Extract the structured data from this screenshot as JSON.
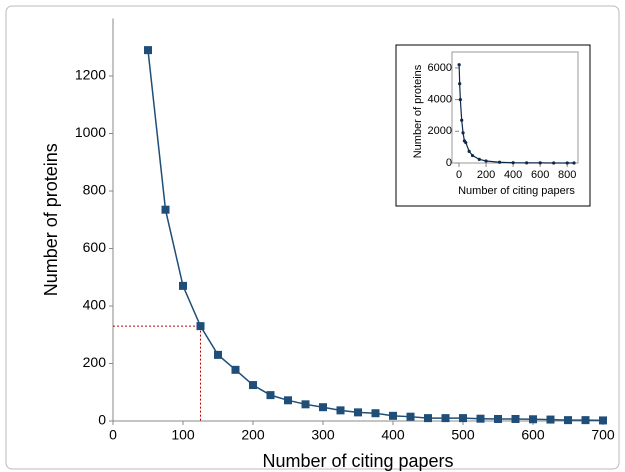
{
  "chart_data": [
    {
      "type": "line",
      "x_label": "Number of citing papers",
      "y_label": "Number of proteins",
      "x": [
        50,
        75,
        100,
        125,
        150,
        175,
        200,
        225,
        250,
        275,
        300,
        325,
        350,
        375,
        400,
        425,
        450,
        475,
        500,
        525,
        550,
        575,
        600,
        625,
        650,
        675,
        700
      ],
      "series": [
        {
          "color": "#1f4e79",
          "values": [
            1290,
            735,
            470,
            330,
            230,
            178,
            125,
            90,
            72,
            58,
            48,
            37,
            30,
            27,
            18,
            15,
            10,
            10,
            10,
            8,
            7,
            7,
            6,
            5,
            3,
            3,
            2
          ]
        }
      ],
      "xlim": [
        0,
        700
      ],
      "ylim": [
        0,
        1400
      ],
      "xticks": [
        0,
        100,
        200,
        300,
        400,
        500,
        600,
        700
      ],
      "yticks": [
        0,
        200,
        400,
        600,
        800,
        1000,
        1200
      ],
      "reference_point": {
        "x": 125,
        "y": 330,
        "color": "#c00000"
      }
    },
    {
      "type": "line",
      "x_label": "Number of citing papers",
      "y_label": "Number of proteins",
      "x": [
        1,
        5,
        10,
        20,
        30,
        40,
        50,
        75,
        100,
        150,
        200,
        300,
        400,
        500,
        600,
        700,
        800,
        850
      ],
      "series": [
        {
          "color": "#0d2a4a",
          "values": [
            6200,
            5000,
            4000,
            2700,
            1900,
            1400,
            1290,
            735,
            470,
            230,
            125,
            48,
            18,
            10,
            6,
            2,
            1,
            0
          ]
        }
      ],
      "xlim": [
        0,
        850
      ],
      "ylim": [
        0,
        6500
      ],
      "xticks": [
        0,
        200,
        400,
        600,
        800
      ],
      "yticks": [
        0,
        2000,
        4000,
        6000
      ]
    }
  ]
}
